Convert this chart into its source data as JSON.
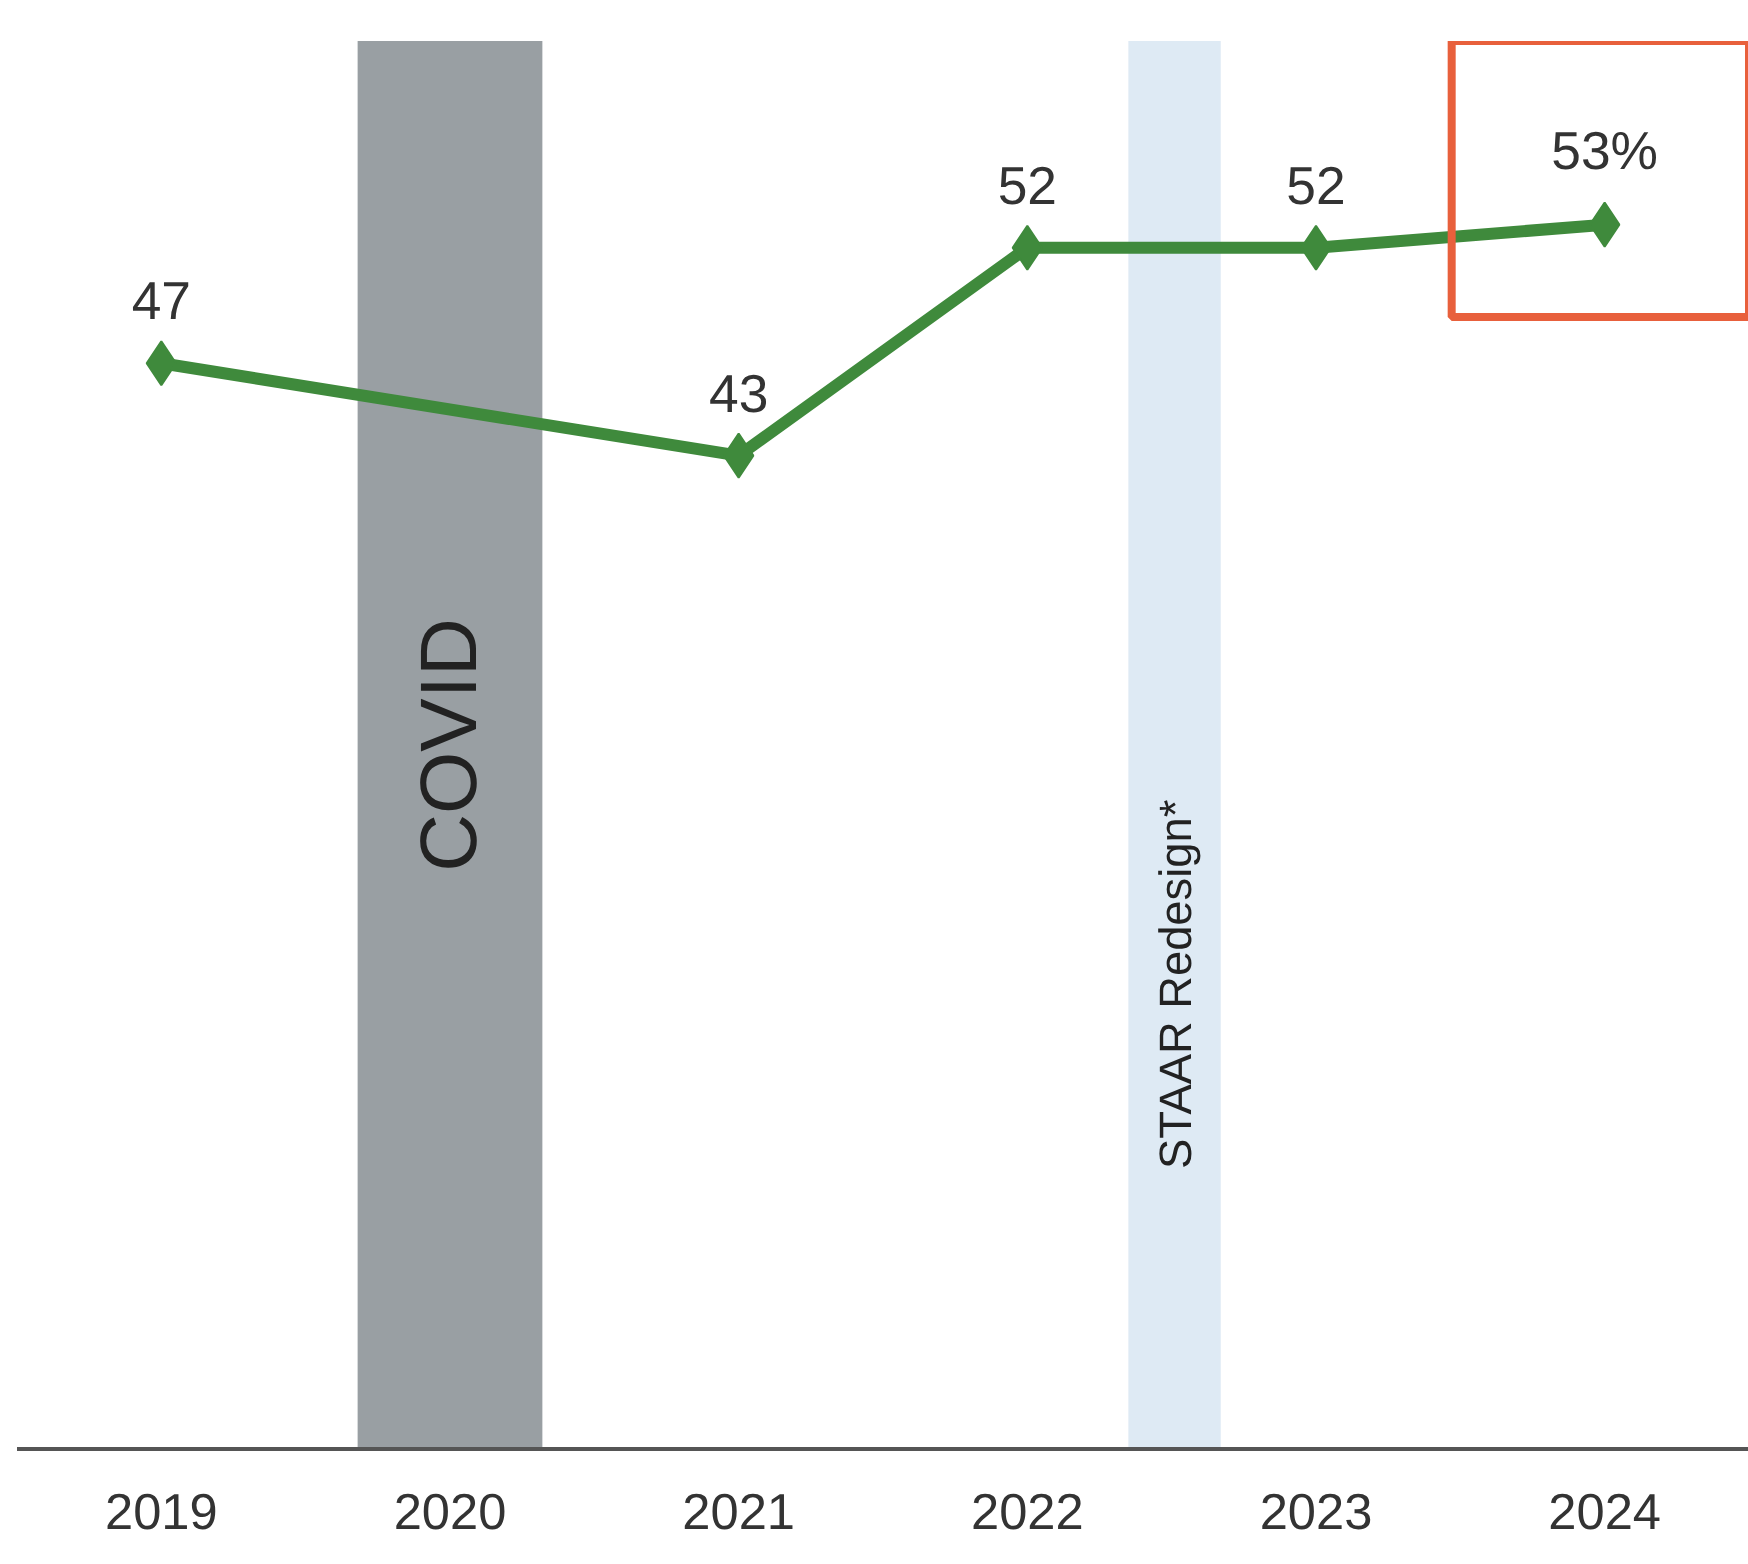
{
  "chart_data": {
    "type": "line",
    "x": [
      2019,
      2021,
      2022,
      2023,
      2024
    ],
    "xlim": [
      2018.5,
      2024.5
    ],
    "xticks": [
      2019,
      2020,
      2021,
      2022,
      2023,
      2024
    ],
    "tick_labels": "x",
    "marker": "diamond",
    "line_style": "solid",
    "series": [
      {
        "color": "#3f8a3c",
        "values": [
          47,
          43,
          52,
          52,
          53
        ],
        "value_labels": [
          "47",
          "43",
          "52",
          "52",
          "53%"
        ]
      }
    ],
    "bands": [
      {
        "axis": "x",
        "from": 2019.68,
        "to": 2020.32,
        "label": "COVID",
        "color": "#999fa3"
      },
      {
        "axis": "x",
        "from": 2022.35,
        "to": 2022.67,
        "label": "STAAR Redesign*",
        "color": "#deeaf4"
      }
    ]
  }
}
